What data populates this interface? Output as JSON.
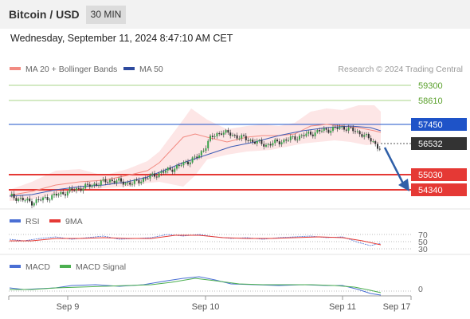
{
  "header": {
    "pair": "Bitcoin / USD",
    "interval": "30 MIN",
    "datetime": "Wednesday, September 11, 2024 8:47:10 AM CET"
  },
  "legend": {
    "ma20": "MA 20 + Bollinger Bands",
    "ma50": "MA 50",
    "copyright": "Research © 2024 Trading Central",
    "ma20_color": "#f28b82",
    "ma50_color": "#2e4a9e"
  },
  "levels": [
    {
      "value": "59300",
      "kind": "resistance",
      "color": "#8bc34a"
    },
    {
      "value": "58610",
      "kind": "resistance",
      "color": "#8bc34a"
    },
    {
      "value": "57450",
      "kind": "pivot",
      "color": "#1e53c8"
    },
    {
      "value": "56532",
      "kind": "last",
      "color": "#333333"
    },
    {
      "value": "55030",
      "kind": "support",
      "color": "#e53935"
    },
    {
      "value": "54340",
      "kind": "support",
      "color": "#e53935"
    }
  ],
  "rsi_panel": {
    "label_rsi": "RSI",
    "label_ma": "9MA",
    "rsi_color": "#4a6fd4",
    "ma_color": "#e53935",
    "levels": [
      "70",
      "50",
      "30"
    ]
  },
  "macd_panel": {
    "label_macd": "MACD",
    "label_signal": "MACD Signal",
    "macd_color": "#4a6fd4",
    "signal_color": "#4caf50",
    "zero": "0"
  },
  "xaxis": [
    "Sep 9",
    "Sep 10",
    "Sep 11",
    "Sep 17"
  ],
  "chart_data": {
    "type": "line",
    "title": "Bitcoin / USD",
    "series": [
      {
        "name": "MA 50",
        "x": [
          "Sep 9",
          "Sep 10",
          "Sep 11"
        ],
        "values": [
          54500,
          55800,
          57100
        ]
      }
    ],
    "price_path": [
      [
        0,
        54390
      ],
      [
        10,
        54100
      ],
      [
        20,
        54400
      ],
      [
        30,
        54700
      ],
      [
        45,
        55100
      ],
      [
        55,
        54950
      ],
      [
        60,
        55150
      ],
      [
        75,
        55700
      ],
      [
        85,
        56200
      ],
      [
        90,
        57000
      ],
      [
        95,
        57300
      ],
      [
        105,
        57000
      ],
      [
        115,
        56700
      ],
      [
        125,
        56950
      ],
      [
        140,
        57350
      ],
      [
        150,
        57500
      ],
      [
        158,
        57200
      ],
      [
        163,
        56850
      ],
      [
        166,
        56532
      ]
    ],
    "ylim": [
      53800,
      59800
    ],
    "projection": {
      "target": "54340",
      "direction": "down"
    },
    "rsi_levels": [
      70,
      50,
      30
    ],
    "macd_zero": 0
  }
}
